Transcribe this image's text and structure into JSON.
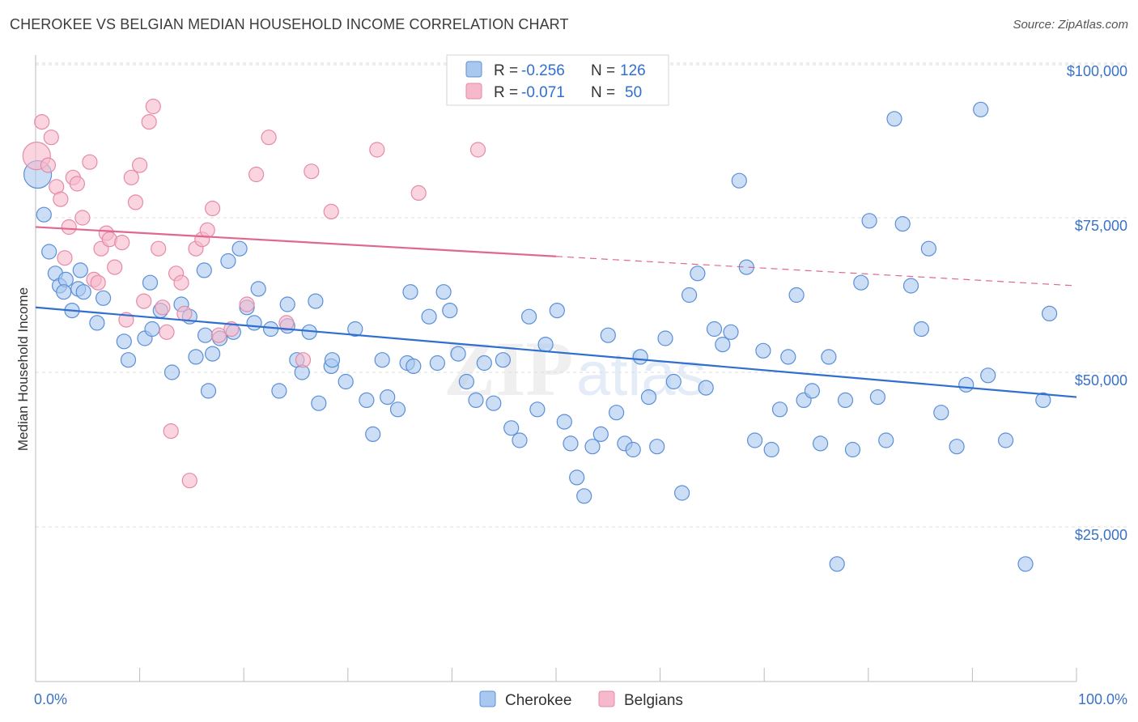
{
  "title": "CHEROKEE VS BELGIAN MEDIAN HOUSEHOLD INCOME CORRELATION CHART",
  "source": "Source: ZipAtlas.com",
  "colors": {
    "cherokee_fill": "#a9c8ef",
    "cherokee_stroke": "#5b8fd6",
    "cherokee_line": "#2f6fd0",
    "belgian_fill": "#f6b9cc",
    "belgian_stroke": "#e58aa8",
    "belgian_line": "#e0678f",
    "tick_text": "#3a72c4",
    "grid": "#dddddd"
  },
  "legend": {
    "rows": [
      {
        "r_label": "R = ",
        "r_value": "-0.256",
        "n_label": "N = ",
        "n_value": "126"
      },
      {
        "r_label": "R = ",
        "r_value": "-0.071",
        "n_label": "N = ",
        "n_value": "50"
      }
    ],
    "bottom": [
      "Cherokee",
      "Belgians"
    ]
  },
  "chart_data": {
    "type": "scatter",
    "title": "CHEROKEE VS BELGIAN MEDIAN HOUSEHOLD INCOME CORRELATION CHART",
    "xlabel": "",
    "ylabel": "Median Household Income",
    "xlim": [
      0,
      100
    ],
    "ylim": [
      0,
      102000
    ],
    "x_tick_labels": [
      "0.0%",
      "100.0%"
    ],
    "y_ticks": [
      25000,
      50000,
      75000,
      100000
    ],
    "y_tick_labels": [
      "$25,000",
      "$50,000",
      "$75,000",
      "$100,000"
    ],
    "grid": true,
    "legend_position": "top-center",
    "watermark": "ZIPatlas",
    "series": [
      {
        "name": "Cherokee",
        "R": -0.256,
        "N": 126,
        "trend": {
          "x": [
            0,
            100
          ],
          "y": [
            60500,
            46000
          ],
          "dashed_from": null
        },
        "points": [
          [
            0.2,
            82000
          ],
          [
            0.8,
            75500
          ],
          [
            1.3,
            69500
          ],
          [
            1.9,
            66000
          ],
          [
            2.3,
            64000
          ],
          [
            2.9,
            65000
          ],
          [
            2.7,
            63000
          ],
          [
            4.1,
            63500
          ],
          [
            4.6,
            63000
          ],
          [
            4.3,
            66500
          ],
          [
            3.5,
            60000
          ],
          [
            5.9,
            58000
          ],
          [
            8.5,
            55000
          ],
          [
            6.5,
            62000
          ],
          [
            10.5,
            55500
          ],
          [
            8.9,
            52000
          ],
          [
            11.2,
            57000
          ],
          [
            13.1,
            50000
          ],
          [
            11.0,
            64500
          ],
          [
            12.0,
            60000
          ],
          [
            14.0,
            61000
          ],
          [
            15.4,
            52500
          ],
          [
            16.2,
            66500
          ],
          [
            14.8,
            59000
          ],
          [
            16.3,
            56000
          ],
          [
            17.0,
            53000
          ],
          [
            16.6,
            47000
          ],
          [
            17.7,
            55500
          ],
          [
            18.5,
            68000
          ],
          [
            19.0,
            56500
          ],
          [
            19.6,
            70000
          ],
          [
            20.3,
            60500
          ],
          [
            21.0,
            58000
          ],
          [
            21.4,
            63500
          ],
          [
            22.6,
            57000
          ],
          [
            23.4,
            47000
          ],
          [
            24.2,
            57500
          ],
          [
            25.1,
            52000
          ],
          [
            25.6,
            50000
          ],
          [
            26.3,
            56500
          ],
          [
            27.2,
            45000
          ],
          [
            28.4,
            51000
          ],
          [
            24.2,
            61000
          ],
          [
            26.9,
            61500
          ],
          [
            28.5,
            52000
          ],
          [
            29.8,
            48500
          ],
          [
            30.7,
            57000
          ],
          [
            31.8,
            45500
          ],
          [
            32.4,
            40000
          ],
          [
            33.3,
            52000
          ],
          [
            33.8,
            46000
          ],
          [
            34.8,
            44000
          ],
          [
            35.7,
            51500
          ],
          [
            36.3,
            51000
          ],
          [
            37.8,
            59000
          ],
          [
            38.6,
            51500
          ],
          [
            39.2,
            63000
          ],
          [
            39.8,
            60000
          ],
          [
            40.6,
            53000
          ],
          [
            41.4,
            48500
          ],
          [
            42.3,
            45500
          ],
          [
            43.1,
            51500
          ],
          [
            44.0,
            45000
          ],
          [
            44.9,
            52000
          ],
          [
            45.7,
            41000
          ],
          [
            46.5,
            39000
          ],
          [
            47.4,
            59000
          ],
          [
            48.2,
            44000
          ],
          [
            49.0,
            54500
          ],
          [
            50.1,
            60000
          ],
          [
            50.8,
            42000
          ],
          [
            51.4,
            38500
          ],
          [
            52.0,
            33000
          ],
          [
            52.7,
            30000
          ],
          [
            53.5,
            38000
          ],
          [
            54.3,
            40000
          ],
          [
            55.0,
            56000
          ],
          [
            55.8,
            43500
          ],
          [
            56.6,
            38500
          ],
          [
            57.4,
            37500
          ],
          [
            58.1,
            52500
          ],
          [
            58.9,
            46000
          ],
          [
            59.7,
            38000
          ],
          [
            60.5,
            55500
          ],
          [
            61.3,
            48500
          ],
          [
            62.1,
            30500
          ],
          [
            62.8,
            62500
          ],
          [
            63.6,
            66000
          ],
          [
            64.4,
            47500
          ],
          [
            65.2,
            57000
          ],
          [
            66.0,
            54500
          ],
          [
            66.8,
            56500
          ],
          [
            67.6,
            81000
          ],
          [
            68.3,
            67000
          ],
          [
            69.1,
            39000
          ],
          [
            69.9,
            53500
          ],
          [
            70.7,
            37500
          ],
          [
            71.5,
            44000
          ],
          [
            72.3,
            52500
          ],
          [
            73.1,
            62500
          ],
          [
            73.8,
            45500
          ],
          [
            74.6,
            47000
          ],
          [
            75.4,
            38500
          ],
          [
            76.2,
            52500
          ],
          [
            77.0,
            19000
          ],
          [
            77.8,
            45500
          ],
          [
            78.5,
            37500
          ],
          [
            79.3,
            64500
          ],
          [
            80.1,
            74500
          ],
          [
            80.9,
            46000
          ],
          [
            81.7,
            39000
          ],
          [
            82.5,
            91000
          ],
          [
            83.3,
            74000
          ],
          [
            84.1,
            64000
          ],
          [
            85.1,
            57000
          ],
          [
            85.8,
            70000
          ],
          [
            87.0,
            43500
          ],
          [
            88.5,
            38000
          ],
          [
            89.4,
            48000
          ],
          [
            90.8,
            92500
          ],
          [
            91.5,
            49500
          ],
          [
            93.2,
            39000
          ],
          [
            95.1,
            19000
          ],
          [
            96.8,
            45500
          ],
          [
            97.4,
            59500
          ],
          [
            36.0,
            63000
          ]
        ]
      },
      {
        "name": "Belgians",
        "R": -0.071,
        "N": 50,
        "trend": {
          "x": [
            0,
            100
          ],
          "y": [
            73500,
            64000
          ],
          "dashed_from": 50
        },
        "points": [
          [
            0.1,
            85000
          ],
          [
            0.6,
            90500
          ],
          [
            1.2,
            83500
          ],
          [
            1.5,
            88000
          ],
          [
            2.0,
            80000
          ],
          [
            2.4,
            78000
          ],
          [
            2.8,
            68500
          ],
          [
            3.2,
            73500
          ],
          [
            3.6,
            81500
          ],
          [
            4.0,
            80500
          ],
          [
            4.5,
            75000
          ],
          [
            5.2,
            84000
          ],
          [
            5.6,
            65000
          ],
          [
            6.0,
            64500
          ],
          [
            6.3,
            70000
          ],
          [
            6.8,
            72500
          ],
          [
            7.1,
            71500
          ],
          [
            7.6,
            67000
          ],
          [
            8.3,
            71000
          ],
          [
            8.7,
            58500
          ],
          [
            9.2,
            81500
          ],
          [
            9.6,
            77500
          ],
          [
            10.0,
            83500
          ],
          [
            10.4,
            61500
          ],
          [
            10.9,
            90500
          ],
          [
            11.3,
            93000
          ],
          [
            11.8,
            70000
          ],
          [
            12.2,
            60500
          ],
          [
            12.6,
            56500
          ],
          [
            13.0,
            40500
          ],
          [
            13.5,
            66000
          ],
          [
            14.0,
            64500
          ],
          [
            14.3,
            59500
          ],
          [
            14.8,
            32500
          ],
          [
            15.4,
            70000
          ],
          [
            16.0,
            71500
          ],
          [
            16.5,
            73000
          ],
          [
            17.0,
            76500
          ],
          [
            17.6,
            56000
          ],
          [
            18.8,
            57000
          ],
          [
            20.3,
            61000
          ],
          [
            21.2,
            82000
          ],
          [
            22.4,
            88000
          ],
          [
            24.1,
            58000
          ],
          [
            25.7,
            52000
          ],
          [
            26.5,
            82500
          ],
          [
            28.4,
            76000
          ],
          [
            32.8,
            86000
          ],
          [
            36.8,
            79000
          ],
          [
            42.5,
            86000
          ]
        ]
      }
    ]
  }
}
